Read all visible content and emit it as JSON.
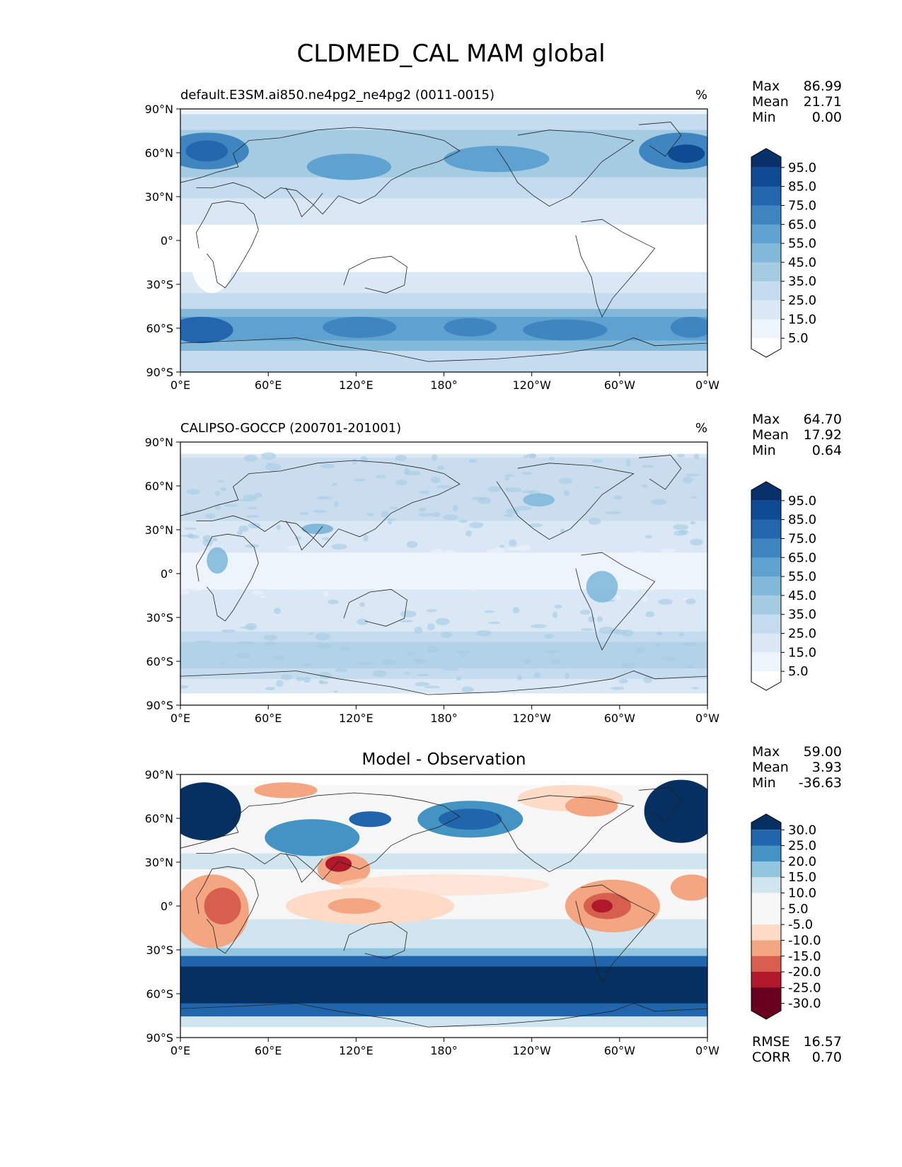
{
  "title": "CLDMED_CAL MAM global",
  "x_ticks": [
    "0°E",
    "60°E",
    "120°E",
    "180°",
    "120°W",
    "60°W",
    "0°W"
  ],
  "y_ticks": [
    "90°N",
    "60°N",
    "30°N",
    "0°",
    "30°S",
    "60°S",
    "90°S"
  ],
  "palettes": {
    "blues": [
      "#ffffff",
      "#eef4fb",
      "#dae7f4",
      "#c5dbee",
      "#a5cbe3",
      "#82b9db",
      "#5fa1cf",
      "#3f86c0",
      "#2366ad",
      "#0e4b93",
      "#08306b"
    ],
    "diverging": [
      "#67001f",
      "#b2182b",
      "#d6604d",
      "#f4a582",
      "#fddbc7",
      "#f7f7f7",
      "#f7f7f7",
      "#d1e5f0",
      "#92c5de",
      "#4393c3",
      "#2166ac",
      "#053061"
    ]
  },
  "panels": [
    {
      "id": "model",
      "subtitle_left": "default.E3SM.ai850.ne4pg2_ne4pg2 (0011-0015)",
      "subtitle_center": "",
      "units": "%",
      "stats": [
        {
          "label": "Max",
          "value": "86.99"
        },
        {
          "label": "Mean",
          "value": "21.71"
        },
        {
          "label": "Min",
          "value": "0.00"
        }
      ],
      "colorbar_labels": [
        "95.0",
        "85.0",
        "75.0",
        "65.0",
        "55.0",
        "45.0",
        "35.0",
        "25.0",
        "15.0",
        "5.0"
      ],
      "palette": "blues",
      "extra_stats": []
    },
    {
      "id": "obs",
      "subtitle_left": "CALIPSO-GOCCP (200701-201001)",
      "subtitle_center": "",
      "units": "%",
      "stats": [
        {
          "label": "Max",
          "value": "64.70"
        },
        {
          "label": "Mean",
          "value": "17.92"
        },
        {
          "label": "Min",
          "value": "0.64"
        }
      ],
      "colorbar_labels": [
        "95.0",
        "85.0",
        "75.0",
        "65.0",
        "55.0",
        "45.0",
        "35.0",
        "25.0",
        "15.0",
        "5.0"
      ],
      "palette": "blues",
      "extra_stats": []
    },
    {
      "id": "diff",
      "subtitle_left": "",
      "subtitle_center": "Model - Observation",
      "units": "",
      "stats": [
        {
          "label": "Max",
          "value": "59.00"
        },
        {
          "label": "Mean",
          "value": "3.93"
        },
        {
          "label": "Min",
          "value": "-36.63"
        }
      ],
      "colorbar_labels": [
        "30.0",
        "25.0",
        "20.0",
        "15.0",
        "10.0",
        "5.0",
        "-5.0",
        "-10.0",
        "-15.0",
        "-20.0",
        "-25.0",
        "-30.0"
      ],
      "palette": "diverging",
      "extra_stats": [
        {
          "label": "RMSE",
          "value": "16.57"
        },
        {
          "label": "CORR",
          "value": "0.70"
        }
      ]
    }
  ]
}
